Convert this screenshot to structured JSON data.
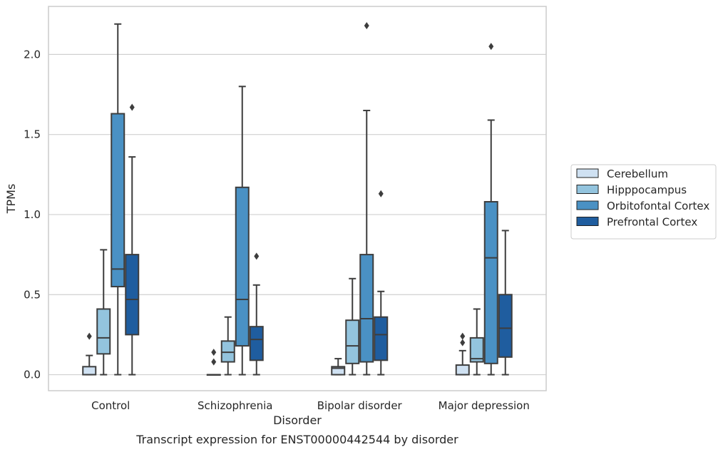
{
  "chart_data": {
    "type": "box",
    "caption": "Transcript expression for ENST00000442544 by disorder",
    "xlabel": "Disorder",
    "ylabel": "TPMs",
    "ylim": [
      -0.1,
      2.3
    ],
    "yticks": [
      "0.0",
      "0.5",
      "1.0",
      "1.5",
      "2.0"
    ],
    "grid": "horizontal",
    "legend_position": "right",
    "categories": [
      "Control",
      "Schizophrenia",
      "Bipolar disorder",
      "Major depression"
    ],
    "series": [
      {
        "name": "Cerebellum",
        "color": "#cfe1f2",
        "boxes": [
          {
            "whisker_low": 0.0,
            "q1": 0.0,
            "median": 0.0,
            "q3": 0.05,
            "whisker_high": 0.12,
            "outliers": [
              0.24
            ]
          },
          {
            "whisker_low": 0.0,
            "q1": 0.0,
            "median": 0.0,
            "q3": 0.0,
            "whisker_high": 0.0,
            "outliers": [
              0.08,
              0.14
            ]
          },
          {
            "whisker_low": 0.0,
            "q1": 0.0,
            "median": 0.04,
            "q3": 0.05,
            "whisker_high": 0.1,
            "outliers": []
          },
          {
            "whisker_low": 0.0,
            "q1": 0.0,
            "median": 0.0,
            "q3": 0.06,
            "whisker_high": 0.15,
            "outliers": [
              0.2,
              0.24
            ]
          }
        ]
      },
      {
        "name": "Hipppocampus",
        "color": "#93c4de",
        "boxes": [
          {
            "whisker_low": 0.0,
            "q1": 0.13,
            "median": 0.23,
            "q3": 0.41,
            "whisker_high": 0.78,
            "outliers": []
          },
          {
            "whisker_low": 0.0,
            "q1": 0.08,
            "median": 0.14,
            "q3": 0.21,
            "whisker_high": 0.36,
            "outliers": []
          },
          {
            "whisker_low": 0.0,
            "q1": 0.07,
            "median": 0.18,
            "q3": 0.34,
            "whisker_high": 0.6,
            "outliers": []
          },
          {
            "whisker_low": 0.0,
            "q1": 0.08,
            "median": 0.1,
            "q3": 0.23,
            "whisker_high": 0.41,
            "outliers": []
          }
        ]
      },
      {
        "name": "Orbitofontal Cortex",
        "color": "#4a91c4",
        "boxes": [
          {
            "whisker_low": 0.0,
            "q1": 0.55,
            "median": 0.66,
            "q3": 1.63,
            "whisker_high": 2.19,
            "outliers": []
          },
          {
            "whisker_low": 0.0,
            "q1": 0.18,
            "median": 0.47,
            "q3": 1.17,
            "whisker_high": 1.8,
            "outliers": []
          },
          {
            "whisker_low": 0.0,
            "q1": 0.08,
            "median": 0.35,
            "q3": 0.75,
            "whisker_high": 1.65,
            "outliers": [
              2.18
            ]
          },
          {
            "whisker_low": 0.0,
            "q1": 0.07,
            "median": 0.73,
            "q3": 1.08,
            "whisker_high": 1.59,
            "outliers": [
              2.05
            ]
          }
        ]
      },
      {
        "name": "Prefrontal Cortex",
        "color": "#1f5d9f",
        "boxes": [
          {
            "whisker_low": 0.0,
            "q1": 0.25,
            "median": 0.47,
            "q3": 0.75,
            "whisker_high": 1.36,
            "outliers": [
              1.67
            ]
          },
          {
            "whisker_low": 0.0,
            "q1": 0.09,
            "median": 0.22,
            "q3": 0.3,
            "whisker_high": 0.56,
            "outliers": [
              0.74
            ]
          },
          {
            "whisker_low": 0.0,
            "q1": 0.09,
            "median": 0.25,
            "q3": 0.36,
            "whisker_high": 0.52,
            "outliers": [
              1.13
            ]
          },
          {
            "whisker_low": 0.0,
            "q1": 0.11,
            "median": 0.29,
            "q3": 0.5,
            "whisker_high": 0.9,
            "outliers": []
          }
        ]
      }
    ]
  }
}
